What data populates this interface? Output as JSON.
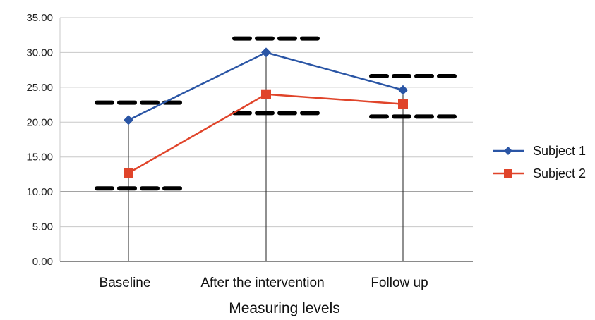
{
  "chart_data": {
    "type": "line",
    "title": "",
    "xlabel": "Measuring levels",
    "ylabel": "",
    "categories": [
      "Baseline",
      "After the intervention",
      "Follow up"
    ],
    "y_ticks": [
      "0.00",
      "5.00",
      "10.00",
      "15.00",
      "20.00",
      "25.00",
      "30.00",
      "35.00"
    ],
    "ylim": [
      0,
      35
    ],
    "grid": true,
    "legend_position": "right",
    "series": [
      {
        "name": "Subject 1",
        "values": [
          20.3,
          30.0,
          24.6
        ],
        "color": "#2a55a5",
        "marker": "diamond"
      },
      {
        "name": "Subject 2",
        "values": [
          12.7,
          24.0,
          22.6
        ],
        "color": "#e0442a",
        "marker": "square"
      }
    ],
    "range_marks": [
      {
        "category": "Baseline",
        "upper": 22.8,
        "lower": 10.5
      },
      {
        "category": "After the intervention",
        "upper": 32.0,
        "lower": 21.3
      },
      {
        "category": "Follow up",
        "upper": 26.6,
        "lower": 20.8
      }
    ]
  }
}
